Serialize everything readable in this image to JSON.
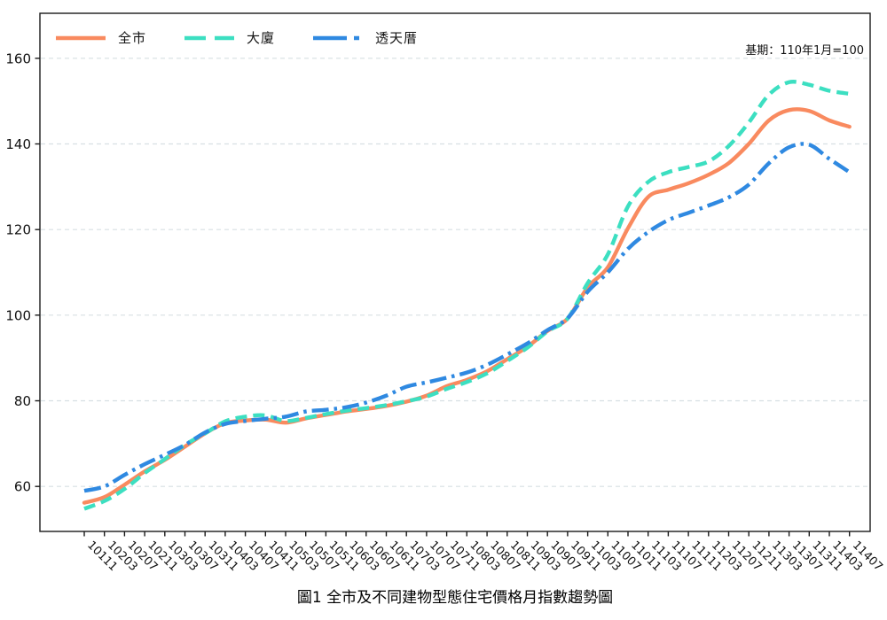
{
  "title": "圖1 全市及不同建物型態住宅價格月指數趨勢圖",
  "annotation": "基期：110年1月=100",
  "legend": {
    "items": [
      {
        "label": "全市",
        "color": "#f98a5f",
        "style": "solid"
      },
      {
        "label": "大廈",
        "color": "#3cdfc1",
        "style": "dashed"
      },
      {
        "label": "透天厝",
        "color": "#2f89e1",
        "style": "dashdot"
      }
    ]
  },
  "chart_data": {
    "type": "line",
    "title": "圖1 全市及不同建物型態住宅價格月指數趨勢圖",
    "annotation": "基期：110年1月=100",
    "xlabel": "",
    "ylabel": "",
    "grid": true,
    "legend_position": "top-left",
    "yticks": [
      60,
      80,
      100,
      120,
      140,
      160
    ],
    "ylim": [
      49.5,
      170.5
    ],
    "x": [
      "10111",
      "10203",
      "10207",
      "10211",
      "10303",
      "10307",
      "10311",
      "10403",
      "10407",
      "10411",
      "10503",
      "10507",
      "10511",
      "10603",
      "10607",
      "10611",
      "10703",
      "10707",
      "10711",
      "10803",
      "10807",
      "10811",
      "10903",
      "10907",
      "10911",
      "11003",
      "11007",
      "11011",
      "11103",
      "11107",
      "11111",
      "11203",
      "11207",
      "11211",
      "11303",
      "11307",
      "11311",
      "11403",
      "11407"
    ],
    "series": [
      {
        "name": "全市",
        "color": "#f98a5f",
        "dash": "solid",
        "values": [
          56.2,
          57.5,
          60.4,
          63.5,
          66.2,
          69.3,
          72.4,
          74.8,
          75.4,
          75.6,
          74.9,
          75.9,
          76.7,
          77.5,
          78.1,
          78.8,
          79.8,
          81.2,
          83.4,
          84.9,
          86.9,
          89.7,
          92.6,
          96.3,
          99.2,
          106.5,
          111.2,
          120.3,
          127.6,
          129.3,
          130.8,
          132.8,
          135.5,
          140.0,
          145.5,
          147.9,
          147.7,
          145.5,
          144.0
        ]
      },
      {
        "name": "大廈",
        "color": "#3cdfc1",
        "dash": "dashed",
        "values": [
          54.8,
          56.6,
          59.4,
          63.1,
          66.4,
          69.7,
          72.4,
          75.2,
          76.3,
          76.6,
          75.3,
          76.0,
          76.9,
          77.7,
          78.3,
          79.0,
          79.9,
          81.0,
          82.8,
          84.4,
          86.4,
          89.3,
          92.4,
          96.2,
          99.2,
          107.5,
          114.2,
          125.4,
          131.1,
          133.4,
          134.6,
          135.9,
          139.5,
          145.0,
          151.5,
          154.4,
          153.8,
          152.4,
          151.7
        ]
      },
      {
        "name": "透天厝",
        "color": "#2f89e1",
        "dash": "dashdot",
        "values": [
          59.0,
          60.0,
          62.7,
          65.2,
          67.4,
          69.7,
          72.6,
          74.6,
          75.3,
          75.8,
          76.3,
          77.5,
          77.9,
          78.5,
          79.6,
          81.2,
          83.3,
          84.3,
          85.4,
          86.6,
          88.4,
          90.8,
          93.4,
          96.5,
          99.3,
          105.5,
          110.0,
          115.5,
          119.4,
          122.2,
          123.9,
          125.6,
          127.5,
          130.5,
          135.5,
          139.2,
          139.8,
          136.5,
          133.4
        ]
      }
    ]
  }
}
